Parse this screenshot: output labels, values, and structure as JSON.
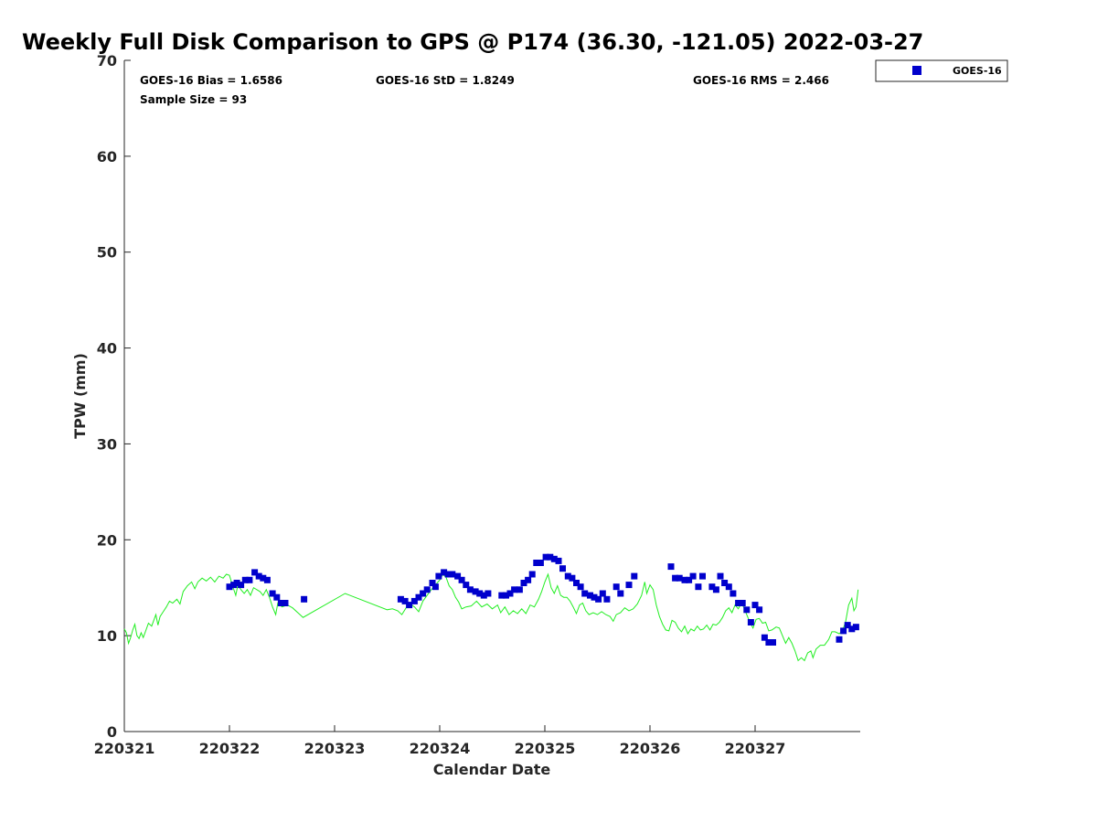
{
  "chart_data": {
    "type": "scatter",
    "title": "Weekly Full Disk Comparison to GPS @ P174 (36.30, -121.05) 2022-03-27",
    "xlabel": "Calendar Date",
    "ylabel": "TPW (mm)",
    "xlim": [
      0,
      7
    ],
    "ylim": [
      0,
      70
    ],
    "x_ticks": [
      {
        "value": 0,
        "label": "220321"
      },
      {
        "value": 1,
        "label": "220322"
      },
      {
        "value": 2,
        "label": "220323"
      },
      {
        "value": 3,
        "label": "220324"
      },
      {
        "value": 4,
        "label": "220325"
      },
      {
        "value": 5,
        "label": "220326"
      },
      {
        "value": 6,
        "label": "220327"
      }
    ],
    "y_ticks": [
      0,
      10,
      20,
      30,
      40,
      50,
      60,
      70
    ],
    "grid": false,
    "legend": {
      "placement": "top-right-outside",
      "entries": [
        {
          "name": "GOES-16",
          "color": "#0000cc",
          "marker": "square"
        }
      ]
    },
    "stats": {
      "bias": "GOES-16 Bias = 1.6586",
      "std": "GOES-16 StD = 1.8249",
      "rms": "GOES-16 RMS = 2.466",
      "sample": "Sample Size = 93"
    },
    "series": [
      {
        "name": "GOES-16",
        "kind": "scatter",
        "color": "#0000cc",
        "points": [
          [
            1.0,
            15.1
          ],
          [
            1.04,
            15.3
          ],
          [
            1.07,
            15.5
          ],
          [
            1.11,
            15.3
          ],
          [
            1.15,
            15.8
          ],
          [
            1.19,
            15.8
          ],
          [
            1.24,
            16.6
          ],
          [
            1.28,
            16.2
          ],
          [
            1.32,
            16.0
          ],
          [
            1.36,
            15.8
          ],
          [
            1.41,
            14.4
          ],
          [
            1.45,
            14.0
          ],
          [
            1.49,
            13.4
          ],
          [
            1.53,
            13.4
          ],
          [
            1.71,
            13.8
          ],
          [
            2.63,
            13.8
          ],
          [
            2.67,
            13.6
          ],
          [
            2.71,
            13.2
          ],
          [
            2.76,
            13.6
          ],
          [
            2.8,
            14.0
          ],
          [
            2.84,
            14.4
          ],
          [
            2.88,
            14.8
          ],
          [
            2.93,
            15.5
          ],
          [
            2.96,
            15.1
          ],
          [
            2.99,
            16.2
          ],
          [
            3.04,
            16.6
          ],
          [
            3.08,
            16.4
          ],
          [
            3.12,
            16.4
          ],
          [
            3.17,
            16.2
          ],
          [
            3.21,
            15.8
          ],
          [
            3.25,
            15.3
          ],
          [
            3.29,
            14.8
          ],
          [
            3.34,
            14.6
          ],
          [
            3.38,
            14.4
          ],
          [
            3.42,
            14.2
          ],
          [
            3.46,
            14.4
          ],
          [
            3.59,
            14.2
          ],
          [
            3.63,
            14.2
          ],
          [
            3.67,
            14.4
          ],
          [
            3.71,
            14.8
          ],
          [
            3.76,
            14.8
          ],
          [
            3.8,
            15.5
          ],
          [
            3.84,
            15.8
          ],
          [
            3.88,
            16.4
          ],
          [
            3.92,
            17.6
          ],
          [
            3.96,
            17.6
          ],
          [
            4.01,
            18.2
          ],
          [
            4.05,
            18.2
          ],
          [
            4.09,
            18.0
          ],
          [
            4.13,
            17.8
          ],
          [
            4.17,
            17.0
          ],
          [
            4.22,
            16.2
          ],
          [
            4.26,
            16.0
          ],
          [
            4.3,
            15.5
          ],
          [
            4.34,
            15.1
          ],
          [
            4.38,
            14.4
          ],
          [
            4.43,
            14.2
          ],
          [
            4.47,
            14.0
          ],
          [
            4.51,
            13.8
          ],
          [
            4.55,
            14.4
          ],
          [
            4.59,
            13.8
          ],
          [
            4.68,
            15.1
          ],
          [
            4.72,
            14.4
          ],
          [
            4.8,
            15.3
          ],
          [
            4.85,
            16.2
          ],
          [
            5.2,
            17.2
          ],
          [
            5.24,
            16.0
          ],
          [
            5.28,
            16.0
          ],
          [
            5.33,
            15.8
          ],
          [
            5.37,
            15.8
          ],
          [
            5.41,
            16.2
          ],
          [
            5.46,
            15.1
          ],
          [
            5.5,
            16.2
          ],
          [
            5.59,
            15.1
          ],
          [
            5.63,
            14.8
          ],
          [
            5.67,
            16.2
          ],
          [
            5.71,
            15.5
          ],
          [
            5.75,
            15.1
          ],
          [
            5.79,
            14.4
          ],
          [
            5.84,
            13.4
          ],
          [
            5.88,
            13.4
          ],
          [
            5.92,
            12.7
          ],
          [
            5.96,
            11.4
          ],
          [
            6.0,
            13.2
          ],
          [
            6.04,
            12.7
          ],
          [
            6.09,
            9.8
          ],
          [
            6.13,
            9.3
          ],
          [
            6.17,
            9.3
          ],
          [
            6.8,
            9.6
          ],
          [
            6.84,
            10.5
          ],
          [
            6.88,
            11.1
          ],
          [
            6.92,
            10.7
          ],
          [
            6.96,
            10.9
          ]
        ]
      },
      {
        "name": "",
        "kind": "line",
        "color": "#22ee22",
        "points": [
          [
            0.0,
            10.7
          ],
          [
            0.02,
            10.3
          ],
          [
            0.04,
            9.2
          ],
          [
            0.06,
            9.8
          ],
          [
            0.08,
            10.6
          ],
          [
            0.1,
            11.2
          ],
          [
            0.12,
            10.0
          ],
          [
            0.14,
            9.7
          ],
          [
            0.16,
            10.3
          ],
          [
            0.18,
            9.8
          ],
          [
            0.2,
            10.4
          ],
          [
            0.23,
            11.3
          ],
          [
            0.26,
            11.0
          ],
          [
            0.28,
            11.6
          ],
          [
            0.3,
            12.2
          ],
          [
            0.32,
            11.1
          ],
          [
            0.34,
            12.0
          ],
          [
            0.37,
            12.5
          ],
          [
            0.4,
            13.0
          ],
          [
            0.43,
            13.6
          ],
          [
            0.46,
            13.4
          ],
          [
            0.5,
            13.8
          ],
          [
            0.53,
            13.3
          ],
          [
            0.56,
            14.6
          ],
          [
            0.6,
            15.2
          ],
          [
            0.64,
            15.6
          ],
          [
            0.67,
            14.9
          ],
          [
            0.7,
            15.6
          ],
          [
            0.74,
            16.0
          ],
          [
            0.78,
            15.7
          ],
          [
            0.82,
            16.1
          ],
          [
            0.86,
            15.6
          ],
          [
            0.9,
            16.2
          ],
          [
            0.94,
            16.0
          ],
          [
            0.97,
            16.4
          ],
          [
            1.0,
            16.3
          ],
          [
            1.03,
            15.2
          ],
          [
            1.06,
            14.2
          ],
          [
            1.08,
            15.3
          ],
          [
            1.11,
            14.8
          ],
          [
            1.14,
            14.4
          ],
          [
            1.17,
            14.8
          ],
          [
            1.2,
            14.2
          ],
          [
            1.23,
            15.0
          ],
          [
            1.26,
            14.8
          ],
          [
            1.29,
            14.6
          ],
          [
            1.32,
            14.2
          ],
          [
            1.35,
            14.8
          ],
          [
            1.38,
            14.0
          ],
          [
            1.41,
            13.0
          ],
          [
            1.44,
            12.2
          ],
          [
            1.46,
            13.4
          ],
          [
            1.5,
            13.0
          ],
          [
            1.55,
            13.2
          ],
          [
            1.6,
            12.9
          ],
          [
            1.66,
            12.3
          ],
          [
            1.7,
            11.9
          ],
          [
            2.1,
            14.4
          ],
          [
            2.5,
            12.7
          ],
          [
            2.55,
            12.8
          ],
          [
            2.6,
            12.6
          ],
          [
            2.64,
            12.2
          ],
          [
            2.68,
            12.9
          ],
          [
            2.72,
            13.3
          ],
          [
            2.76,
            13.0
          ],
          [
            2.8,
            12.5
          ],
          [
            2.84,
            13.6
          ],
          [
            2.88,
            14.2
          ],
          [
            2.92,
            14.8
          ],
          [
            2.96,
            15.3
          ],
          [
            3.0,
            15.8
          ],
          [
            3.03,
            16.4
          ],
          [
            3.06,
            16.1
          ],
          [
            3.09,
            15.2
          ],
          [
            3.12,
            14.8
          ],
          [
            3.15,
            14.0
          ],
          [
            3.18,
            13.5
          ],
          [
            3.21,
            12.8
          ],
          [
            3.25,
            13.0
          ],
          [
            3.3,
            13.1
          ],
          [
            3.35,
            13.6
          ],
          [
            3.4,
            13.0
          ],
          [
            3.45,
            13.3
          ],
          [
            3.5,
            12.8
          ],
          [
            3.55,
            13.2
          ],
          [
            3.58,
            12.4
          ],
          [
            3.62,
            13.0
          ],
          [
            3.66,
            12.2
          ],
          [
            3.7,
            12.6
          ],
          [
            3.74,
            12.3
          ],
          [
            3.78,
            12.8
          ],
          [
            3.82,
            12.3
          ],
          [
            3.86,
            13.2
          ],
          [
            3.9,
            13.0
          ],
          [
            3.94,
            13.8
          ],
          [
            3.97,
            14.6
          ],
          [
            4.0,
            15.6
          ],
          [
            4.03,
            16.4
          ],
          [
            4.06,
            15.0
          ],
          [
            4.09,
            14.4
          ],
          [
            4.12,
            15.2
          ],
          [
            4.15,
            14.2
          ],
          [
            4.18,
            14.0
          ],
          [
            4.21,
            14.0
          ],
          [
            4.24,
            13.6
          ],
          [
            4.27,
            13.0
          ],
          [
            4.3,
            12.3
          ],
          [
            4.33,
            13.2
          ],
          [
            4.36,
            13.4
          ],
          [
            4.39,
            12.6
          ],
          [
            4.42,
            12.2
          ],
          [
            4.46,
            12.4
          ],
          [
            4.5,
            12.2
          ],
          [
            4.54,
            12.5
          ],
          [
            4.58,
            12.2
          ],
          [
            4.62,
            12.0
          ],
          [
            4.65,
            11.5
          ],
          [
            4.68,
            12.2
          ],
          [
            4.72,
            12.4
          ],
          [
            4.76,
            12.9
          ],
          [
            4.8,
            12.6
          ],
          [
            4.84,
            12.8
          ],
          [
            4.88,
            13.3
          ],
          [
            4.92,
            14.2
          ],
          [
            4.95,
            15.6
          ],
          [
            4.97,
            14.4
          ],
          [
            5.0,
            15.3
          ],
          [
            5.03,
            14.8
          ],
          [
            5.06,
            13.2
          ],
          [
            5.09,
            12.0
          ],
          [
            5.12,
            11.2
          ],
          [
            5.15,
            10.6
          ],
          [
            5.18,
            10.5
          ],
          [
            5.21,
            11.6
          ],
          [
            5.24,
            11.4
          ],
          [
            5.27,
            10.8
          ],
          [
            5.3,
            10.4
          ],
          [
            5.33,
            11.0
          ],
          [
            5.36,
            10.2
          ],
          [
            5.39,
            10.7
          ],
          [
            5.42,
            10.5
          ],
          [
            5.45,
            11.0
          ],
          [
            5.48,
            10.6
          ],
          [
            5.51,
            10.7
          ],
          [
            5.54,
            11.1
          ],
          [
            5.57,
            10.6
          ],
          [
            5.6,
            11.2
          ],
          [
            5.63,
            11.1
          ],
          [
            5.66,
            11.4
          ],
          [
            5.69,
            11.9
          ],
          [
            5.72,
            12.6
          ],
          [
            5.75,
            12.9
          ],
          [
            5.78,
            12.4
          ],
          [
            5.81,
            13.2
          ],
          [
            5.84,
            12.8
          ],
          [
            5.87,
            13.4
          ],
          [
            5.9,
            12.8
          ],
          [
            5.92,
            12.2
          ],
          [
            5.95,
            11.4
          ],
          [
            5.98,
            10.8
          ],
          [
            6.01,
            11.7
          ],
          [
            6.04,
            11.8
          ],
          [
            6.07,
            11.3
          ],
          [
            6.1,
            11.4
          ],
          [
            6.13,
            10.5
          ],
          [
            6.16,
            10.6
          ],
          [
            6.2,
            10.9
          ],
          [
            6.23,
            10.8
          ],
          [
            6.26,
            10.0
          ],
          [
            6.29,
            9.2
          ],
          [
            6.32,
            9.8
          ],
          [
            6.35,
            9.2
          ],
          [
            6.38,
            8.4
          ],
          [
            6.41,
            7.4
          ],
          [
            6.44,
            7.7
          ],
          [
            6.47,
            7.4
          ],
          [
            6.5,
            8.2
          ],
          [
            6.53,
            8.4
          ],
          [
            6.55,
            7.7
          ],
          [
            6.58,
            8.6
          ],
          [
            6.62,
            9.0
          ],
          [
            6.66,
            9.0
          ],
          [
            6.7,
            9.6
          ],
          [
            6.73,
            10.4
          ],
          [
            6.76,
            10.4
          ],
          [
            6.8,
            10.2
          ],
          [
            6.83,
            10.5
          ],
          [
            6.86,
            11.4
          ],
          [
            6.89,
            13.2
          ],
          [
            6.92,
            13.9
          ],
          [
            6.94,
            12.6
          ],
          [
            6.96,
            13.0
          ],
          [
            6.98,
            14.8
          ]
        ]
      }
    ]
  }
}
